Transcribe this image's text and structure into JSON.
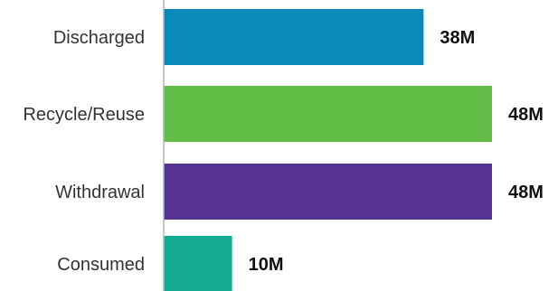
{
  "chart_data": {
    "type": "bar",
    "orientation": "horizontal",
    "categories": [
      "Discharged",
      "Recycle/Reuse",
      "Withdrawal",
      "Consumed"
    ],
    "values": [
      38,
      48,
      48,
      10
    ],
    "value_labels": [
      "38M",
      "48M",
      "48M",
      "10M"
    ],
    "colors": [
      "#0a8ab8",
      "#62bd46",
      "#563393",
      "#13ab91"
    ],
    "xlim": [
      0,
      48
    ],
    "grid": false,
    "legend": "none"
  }
}
